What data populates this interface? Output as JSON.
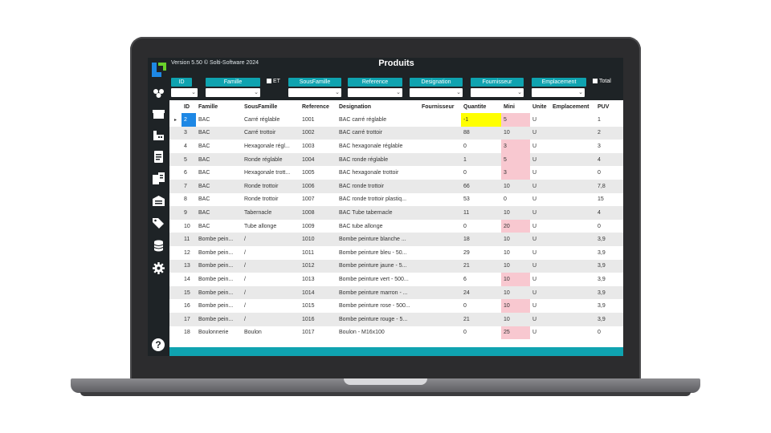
{
  "app": {
    "version": "Version 5.50 © Solti-Software 2024",
    "title": "Produits"
  },
  "sidebar": {
    "icons": [
      "group-icon",
      "box-icon",
      "factory-icon",
      "document-icon",
      "documents-icon",
      "warehouse-icon",
      "tags-icon",
      "database-icon",
      "gear-icon"
    ],
    "help": "?"
  },
  "filters": {
    "id": "ID",
    "famille": "Famille",
    "et": "ET",
    "sousfamille": "SousFamille",
    "reference": "Reference",
    "designation": "Designation",
    "fournisseur": "Fournisseur",
    "emplacement": "Emplacement",
    "total": "Total"
  },
  "table": {
    "columns": [
      "ID",
      "Famille",
      "SousFamille",
      "Reference",
      "Designation",
      "Fournisseur",
      "Quantite",
      "Mini",
      "Unite",
      "Emplacement",
      "PUV"
    ],
    "rows": [
      {
        "id": "2",
        "famille": "BAC",
        "sousfamille": "Carré réglable",
        "reference": "1001",
        "designation": "BAC carré réglable",
        "fournisseur": "",
        "quantite": "-1",
        "mini": "5",
        "unite": "U",
        "emplacement": "",
        "puv": "1",
        "qty_yellow": true,
        "mini_pink": true,
        "selected": true
      },
      {
        "id": "3",
        "famille": "BAC",
        "sousfamille": "Carré trottoir",
        "reference": "1002",
        "designation": "BAC carré trottoir",
        "fournisseur": "",
        "quantite": "88",
        "mini": "10",
        "unite": "U",
        "emplacement": "",
        "puv": "2"
      },
      {
        "id": "4",
        "famille": "BAC",
        "sousfamille": "Hexagonale régl...",
        "reference": "1003",
        "designation": "BAC hexagonale réglable",
        "fournisseur": "",
        "quantite": "0",
        "mini": "3",
        "unite": "U",
        "emplacement": "",
        "puv": "3",
        "mini_pink": true
      },
      {
        "id": "5",
        "famille": "BAC",
        "sousfamille": "Ronde réglable",
        "reference": "1004",
        "designation": "BAC ronde réglable",
        "fournisseur": "",
        "quantite": "1",
        "mini": "5",
        "unite": "U",
        "emplacement": "",
        "puv": "4",
        "mini_pink": true
      },
      {
        "id": "6",
        "famille": "BAC",
        "sousfamille": "Hexagonale trott...",
        "reference": "1005",
        "designation": "BAC hexagonale trottoir",
        "fournisseur": "",
        "quantite": "0",
        "mini": "3",
        "unite": "U",
        "emplacement": "",
        "puv": "0",
        "mini_pink": true
      },
      {
        "id": "7",
        "famille": "BAC",
        "sousfamille": "Ronde trottoir",
        "reference": "1006",
        "designation": "BAC ronde trottoir",
        "fournisseur": "",
        "quantite": "66",
        "mini": "10",
        "unite": "U",
        "emplacement": "",
        "puv": "7,8"
      },
      {
        "id": "8",
        "famille": "BAC",
        "sousfamille": "Ronde trottoir",
        "reference": "1007",
        "designation": "BAC ronde trottoir plastiq...",
        "fournisseur": "",
        "quantite": "53",
        "mini": "0",
        "unite": "U",
        "emplacement": "",
        "puv": "15"
      },
      {
        "id": "9",
        "famille": "BAC",
        "sousfamille": "Tabernacle",
        "reference": "1008",
        "designation": "BAC Tube tabernacle",
        "fournisseur": "",
        "quantite": "11",
        "mini": "10",
        "unite": "U",
        "emplacement": "",
        "puv": "4"
      },
      {
        "id": "10",
        "famille": "BAC",
        "sousfamille": "Tube allonge",
        "reference": "1009",
        "designation": "BAC tube allonge",
        "fournisseur": "",
        "quantite": "0",
        "mini": "20",
        "unite": "U",
        "emplacement": "",
        "puv": "0",
        "mini_pink": true
      },
      {
        "id": "11",
        "famille": "Bombe pein...",
        "sousfamille": "/",
        "reference": "1010",
        "designation": "Bombe peinture blanche ...",
        "fournisseur": "",
        "quantite": "18",
        "mini": "10",
        "unite": "U",
        "emplacement": "",
        "puv": "3,9"
      },
      {
        "id": "12",
        "famille": "Bombe pein...",
        "sousfamille": "/",
        "reference": "1011",
        "designation": "Bombe peinture bleu - 50...",
        "fournisseur": "",
        "quantite": "29",
        "mini": "10",
        "unite": "U",
        "emplacement": "",
        "puv": "3,9"
      },
      {
        "id": "13",
        "famille": "Bombe pein...",
        "sousfamille": "/",
        "reference": "1012",
        "designation": "Bombe peinture jaune - 5...",
        "fournisseur": "",
        "quantite": "21",
        "mini": "10",
        "unite": "U",
        "emplacement": "",
        "puv": "3,9"
      },
      {
        "id": "14",
        "famille": "Bombe pein...",
        "sousfamille": "/",
        "reference": "1013",
        "designation": "Bombe peinture vert - 500...",
        "fournisseur": "",
        "quantite": "6",
        "mini": "10",
        "unite": "U",
        "emplacement": "",
        "puv": "3,9",
        "mini_pink": true
      },
      {
        "id": "15",
        "famille": "Bombe pein...",
        "sousfamille": "/",
        "reference": "1014",
        "designation": "Bombe peinture marron - ...",
        "fournisseur": "",
        "quantite": "24",
        "mini": "10",
        "unite": "U",
        "emplacement": "",
        "puv": "3,9"
      },
      {
        "id": "16",
        "famille": "Bombe pein...",
        "sousfamille": "/",
        "reference": "1015",
        "designation": "Bombe peinture rose - 500...",
        "fournisseur": "",
        "quantite": "0",
        "mini": "10",
        "unite": "U",
        "emplacement": "",
        "puv": "3,9",
        "mini_pink": true
      },
      {
        "id": "17",
        "famille": "Bombe pein...",
        "sousfamille": "/",
        "reference": "1016",
        "designation": "Bombe peinture rouge - 5...",
        "fournisseur": "",
        "quantite": "21",
        "mini": "10",
        "unite": "U",
        "emplacement": "",
        "puv": "3,9"
      },
      {
        "id": "18",
        "famille": "Boulonnerie",
        "sousfamille": "Boulon",
        "reference": "1017",
        "designation": "Boulon - M16x100",
        "fournisseur": "",
        "quantite": "0",
        "mini": "25",
        "unite": "U",
        "emplacement": "",
        "puv": "0",
        "mini_pink": true
      }
    ]
  },
  "colors": {
    "accent": "#0fa3b0",
    "dark": "#1e2326",
    "selected": "#1e88e5",
    "warn_yellow": "#ffff00",
    "warn_pink": "#f8c8d0"
  }
}
